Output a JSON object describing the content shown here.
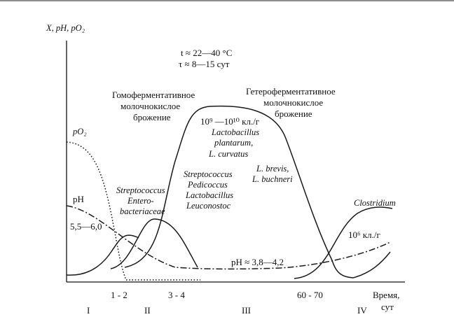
{
  "chart": {
    "y_axis_label": "X, pH, pO₂",
    "x_axis_label_line1": "Время,",
    "x_axis_label_line2": "сут",
    "conditions": {
      "temp": "t ≈ 22—40 °C",
      "duration": "τ ≈ 8—15 сут"
    },
    "x_ticks": [
      "1 - 2",
      "3 - 4",
      "60 - 70"
    ],
    "stages": [
      "I",
      "II",
      "III",
      "IV"
    ],
    "curve_labels": {
      "po2": "pO₂",
      "ph": "pH",
      "ph_start": "5,5—6,0",
      "ph_end": "pH ≈ 3,8—4,2"
    },
    "fermentation": {
      "homo": [
        "Гомоферментативное",
        "молочнокислое",
        "брожение"
      ],
      "hetero": [
        "Гетероферментативное",
        "молочнокислое",
        "брожение"
      ]
    },
    "microbes": {
      "group1": [
        "Streptococcus",
        "Entero-",
        "bacteriaceae"
      ],
      "group2": [
        "Streptococcus",
        "Pedicoccus",
        "Lactobacillus",
        "Leuconostoc"
      ],
      "group3_count": "10⁹ —10¹⁰ кл./г",
      "group3": [
        "Lactobacillus",
        "plantarum,",
        "L. curvatus"
      ],
      "group4": [
        "L. brevis,",
        "L. buchneri"
      ],
      "group5": "Clostridium",
      "group5_count": "10⁶ кл./г"
    }
  }
}
